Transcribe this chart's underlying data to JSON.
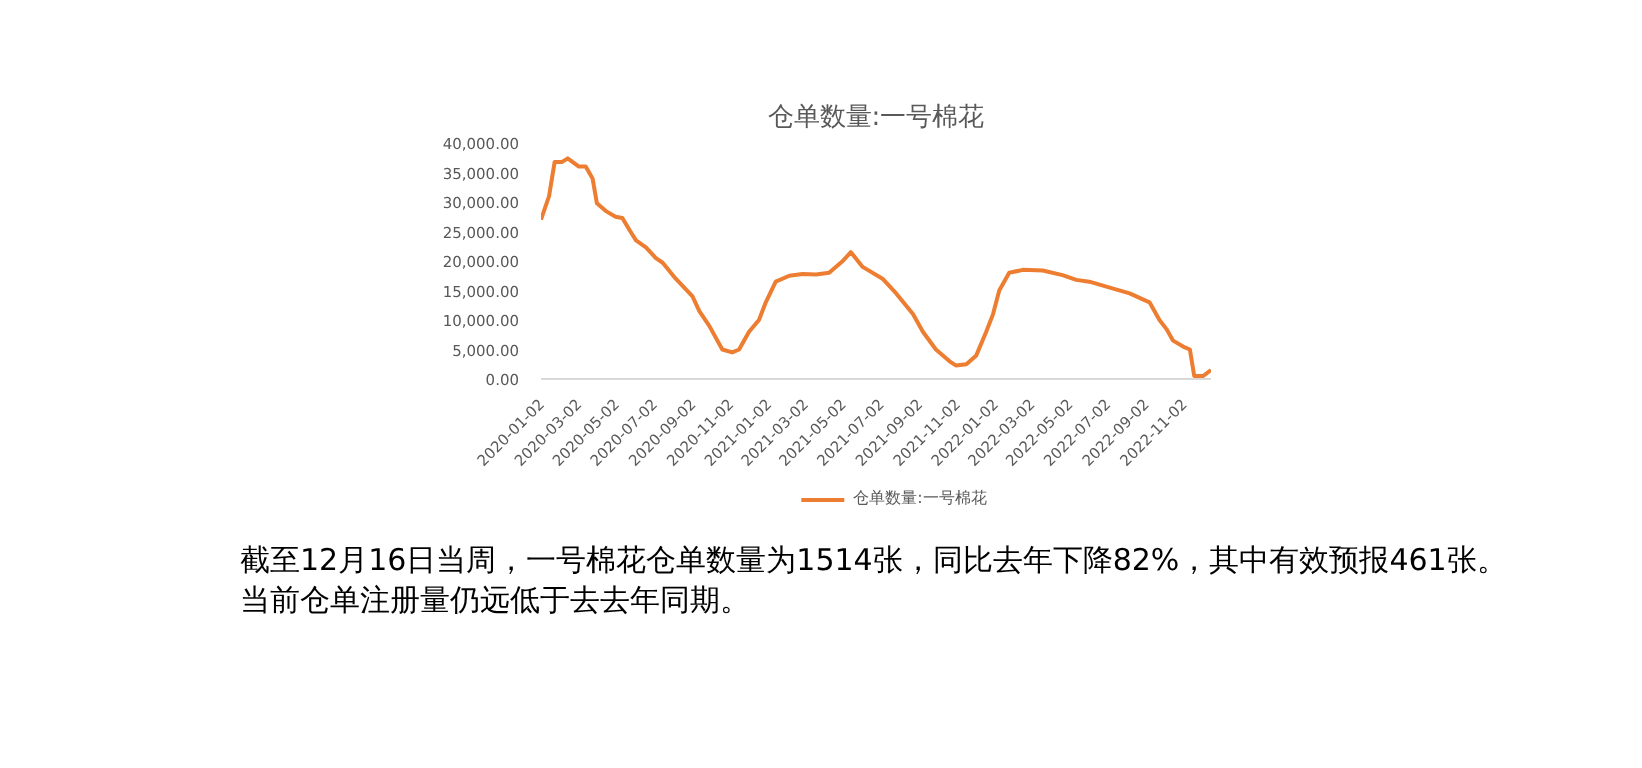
{
  "chart_data": {
    "type": "line",
    "title": "仓单数量:一号棉花",
    "x": [
      "2020-01-02",
      "2020-01-15",
      "2020-01-24",
      "2020-02-05",
      "2020-02-14",
      "2020-03-03",
      "2020-03-14",
      "2020-03-25",
      "2020-04-01",
      "2020-04-15",
      "2020-05-01",
      "2020-05-12",
      "2020-05-25",
      "2020-06-03",
      "2020-06-19",
      "2020-07-05",
      "2020-07-16",
      "2020-08-06",
      "2020-09-02",
      "2020-09-13",
      "2020-09-29",
      "2020-10-20",
      "2020-11-05",
      "2020-11-16",
      "2020-12-02",
      "2020-12-18",
      "2020-12-29",
      "2021-01-14",
      "2021-02-05",
      "2021-02-26",
      "2021-03-20",
      "2021-04-10",
      "2021-05-02",
      "2021-05-15",
      "2021-06-03",
      "2021-07-05",
      "2021-07-27",
      "2021-08-23",
      "2021-09-08",
      "2021-09-29",
      "2021-10-21",
      "2021-10-31",
      "2021-11-17",
      "2021-12-03",
      "2021-12-19",
      "2021-12-30",
      "2022-01-09",
      "2022-01-25",
      "2022-02-16",
      "2022-03-20",
      "2022-04-21",
      "2022-05-13",
      "2022-06-03",
      "2022-07-06",
      "2022-08-07",
      "2022-09-08",
      "2022-09-24",
      "2022-10-05",
      "2022-10-16",
      "2022-11-01",
      "2022-11-12",
      "2022-11-19",
      "2022-12-03",
      "2022-12-16"
    ],
    "series": [
      {
        "name": "仓单数量:一号棉花",
        "color": "#ed7d31",
        "values": [
          27000,
          31000,
          36800,
          36800,
          37400,
          36000,
          36000,
          34000,
          29800,
          28500,
          27500,
          27300,
          25000,
          23500,
          22300,
          20500,
          19700,
          17000,
          14000,
          11500,
          9000,
          5000,
          4500,
          5000,
          8000,
          10000,
          13000,
          16500,
          17500,
          17800,
          17700,
          18000,
          20000,
          21500,
          19000,
          17000,
          14500,
          11000,
          8000,
          5000,
          3000,
          2300,
          2500,
          4000,
          8000,
          11000,
          15000,
          18000,
          18500,
          18400,
          17600,
          16800,
          16500,
          15500,
          14500,
          13000,
          10000,
          8500,
          6500,
          5500,
          5000,
          500,
          500,
          1514
        ]
      }
    ],
    "xlim": [
      "2020-01-02",
      "2022-12-16"
    ],
    "xticks": [
      "2020-01-02",
      "2020-03-02",
      "2020-05-02",
      "2020-07-02",
      "2020-09-02",
      "2020-11-02",
      "2021-01-02",
      "2021-03-02",
      "2021-05-02",
      "2021-07-02",
      "2021-09-02",
      "2021-11-02",
      "2022-01-02",
      "2022-03-02",
      "2022-05-02",
      "2022-07-02",
      "2022-09-02",
      "2022-11-02"
    ],
    "ylim": [
      0,
      40000
    ],
    "yticks": [
      {
        "value": 0,
        "label": "0.00"
      },
      {
        "value": 5000,
        "label": "5,000.00"
      },
      {
        "value": 10000,
        "label": "10,000.00"
      },
      {
        "value": 15000,
        "label": "15,000.00"
      },
      {
        "value": 20000,
        "label": "20,000.00"
      },
      {
        "value": 25000,
        "label": "25,000.00"
      },
      {
        "value": 30000,
        "label": "30,000.00"
      },
      {
        "value": 35000,
        "label": "35,000.00"
      },
      {
        "value": 40000,
        "label": "40,000.00"
      }
    ],
    "grid": false,
    "legend": "bottom",
    "marker": "none",
    "line_style": "solid",
    "annotations": [
      "截至12月16日当周，一号棉花仓单数量为1514张，同比去年下降82%，其中有效预报461张。当前仓单注册量仍远低于去去年同期。"
    ]
  }
}
